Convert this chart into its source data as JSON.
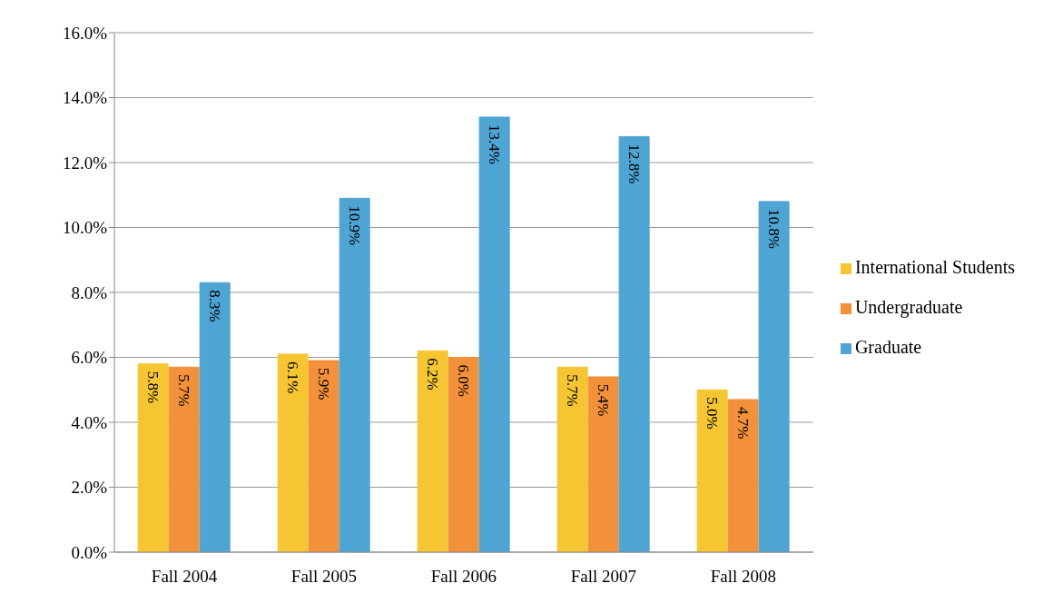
{
  "chart_data": {
    "type": "bar",
    "categories": [
      "Fall 2004",
      "Fall 2005",
      "Fall 2006",
      "Fall 2007",
      "Fall 2008"
    ],
    "series": [
      {
        "name": "International Students",
        "color": "#f5c631",
        "values": [
          5.8,
          6.1,
          6.2,
          5.7,
          5.0
        ],
        "value_labels": [
          "5.8%",
          "6.1%",
          "6.2%",
          "5.7%",
          "5.0%"
        ]
      },
      {
        "name": "Undergraduate",
        "color": "#f3913a",
        "values": [
          5.7,
          5.9,
          6.0,
          5.4,
          4.7
        ],
        "value_labels": [
          "5.7%",
          "5.9%",
          "6.0%",
          "5.4%",
          "4.7%"
        ]
      },
      {
        "name": "Graduate",
        "color": "#4ea4d2",
        "values": [
          8.3,
          10.9,
          13.4,
          12.8,
          10.8
        ],
        "value_labels": [
          "8.3%",
          "10.9%",
          "13.4%",
          "12.8%",
          "10.8%"
        ]
      }
    ],
    "ylim": [
      0,
      16
    ],
    "yticks": [
      {
        "value": 0,
        "label": "0.0%"
      },
      {
        "value": 2,
        "label": "2.0%"
      },
      {
        "value": 4,
        "label": "4.0%"
      },
      {
        "value": 6,
        "label": "6.0%"
      },
      {
        "value": 8,
        "label": "8.0%"
      },
      {
        "value": 10,
        "label": "10.0%"
      },
      {
        "value": 12,
        "label": "12.0%"
      },
      {
        "value": 14,
        "label": "14.0%"
      },
      {
        "value": 16,
        "label": "16.0%"
      }
    ],
    "grid": "y",
    "legend": "right"
  }
}
